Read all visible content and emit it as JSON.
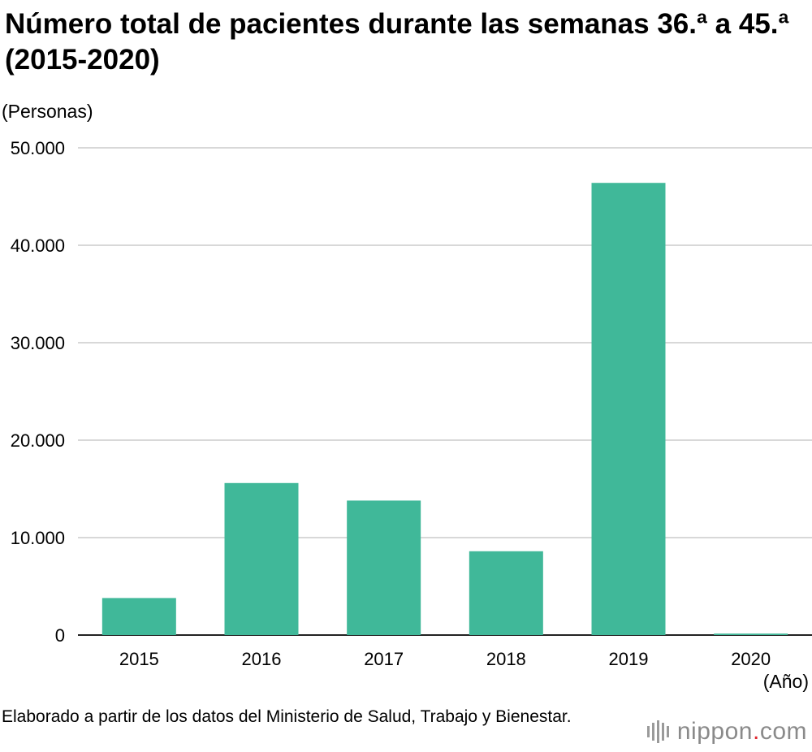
{
  "header": {
    "title": "Número total de pacientes durante las semanas 36.ª a 45.ª (2015-2020)",
    "unit_label": "(Personas)"
  },
  "chart_data": {
    "type": "bar",
    "title": "Número total de pacientes durante las semanas 36.ª a 45.ª (2015-2020)",
    "ylabel": "(Personas)",
    "xlabel": "(Año)",
    "categories": [
      "2015",
      "2016",
      "2017",
      "2018",
      "2019",
      "2020"
    ],
    "values": [
      3800,
      15600,
      13800,
      8600,
      46400,
      150
    ],
    "ylim": [
      0,
      50000
    ],
    "yticks": [
      0,
      10000,
      20000,
      30000,
      40000,
      50000
    ],
    "ytick_labels": [
      "0",
      "10.000",
      "20.000",
      "30.000",
      "40.000",
      "50.000"
    ],
    "grid": true,
    "bar_color": "#40b899"
  },
  "footer": {
    "x_unit": "(Año)",
    "source": "Elaborado a partir de los datos del Ministerio de Salud, Trabajo y Bienestar.",
    "logo_main": "nippon",
    "logo_dot": ".",
    "logo_tld": "com"
  }
}
